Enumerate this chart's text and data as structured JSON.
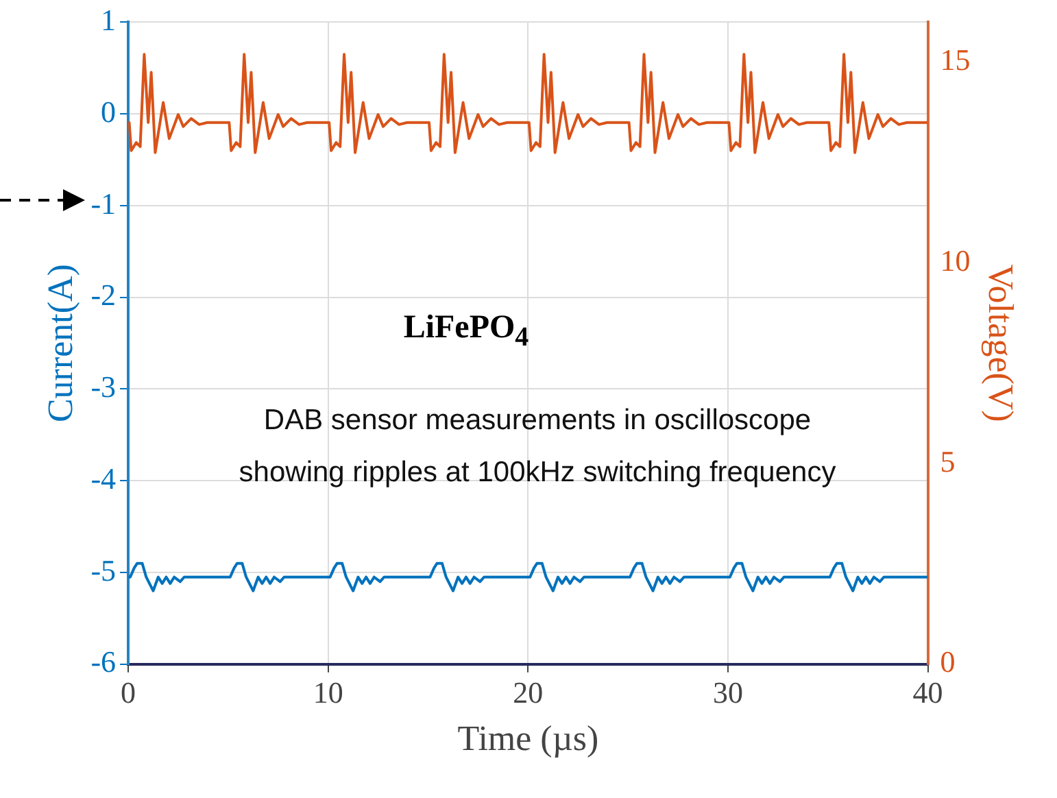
{
  "chart_data": {
    "type": "line",
    "xlabel": "Time (µs)",
    "ylabel": "Current(A)",
    "y2label": "Voltage(V)",
    "xlim": [
      0,
      40
    ],
    "xticks": [
      0,
      10,
      20,
      30,
      40
    ],
    "ylim": [
      -6,
      1
    ],
    "yticks": [
      -6,
      -5,
      -4,
      -3,
      -2,
      -1,
      0,
      1
    ],
    "y2lim": [
      0,
      16
    ],
    "y2ticks": [
      0,
      5,
      10,
      15
    ],
    "grid": true,
    "marker": "none",
    "line_style": "solid",
    "annotations": [
      "LiFePO$_{4}$",
      "DAB sensor measurements in oscilloscope showing ripples at 100kHz switching frequency"
    ],
    "series": [
      {
        "axis": "y2",
        "color": "#d95319",
        "x": [
          0,
          0.05,
          0.15,
          0.4,
          0.6,
          0.8,
          1.0,
          1.15,
          1.35,
          1.75,
          2.05,
          2.5,
          2.75,
          3.15,
          3.55,
          3.95,
          5.05,
          5.15,
          5.4,
          5.6,
          5.8,
          6.0,
          6.15,
          6.35,
          6.75,
          7.05,
          7.5,
          7.75,
          8.15,
          8.55,
          8.95,
          10.05,
          10.15,
          10.4,
          10.6,
          10.8,
          11.0,
          11.15,
          11.35,
          11.75,
          12.05,
          12.5,
          12.75,
          13.15,
          13.55,
          13.95,
          15.05,
          15.15,
          15.4,
          15.6,
          15.8,
          16.0,
          16.15,
          16.35,
          16.75,
          17.05,
          17.5,
          17.75,
          18.15,
          18.55,
          18.95,
          20.05,
          20.15,
          20.4,
          20.6,
          20.8,
          21.0,
          21.15,
          21.35,
          21.75,
          22.05,
          22.5,
          22.75,
          23.15,
          23.55,
          23.95,
          25.05,
          25.15,
          25.4,
          25.6,
          25.8,
          26.0,
          26.15,
          26.35,
          26.75,
          27.05,
          27.5,
          27.75,
          28.15,
          28.55,
          28.95,
          30.05,
          30.15,
          30.4,
          30.6,
          30.8,
          31.0,
          31.15,
          31.35,
          31.75,
          32.05,
          32.5,
          32.75,
          33.15,
          33.55,
          33.95,
          35.05,
          35.15,
          35.4,
          35.6,
          35.8,
          36.0,
          36.15,
          36.35,
          36.75,
          37.05,
          37.5,
          37.75,
          38.15,
          38.55,
          38.95,
          40
        ],
        "values": [
          13.5,
          13.5,
          12.8,
          13.0,
          12.9,
          15.2,
          13.5,
          14.75,
          12.75,
          14.0,
          13.1,
          13.7,
          13.4,
          13.6,
          13.45,
          13.5,
          13.5,
          12.8,
          13.0,
          12.9,
          15.2,
          13.5,
          14.75,
          12.75,
          14.0,
          13.1,
          13.7,
          13.4,
          13.6,
          13.45,
          13.5,
          13.5,
          12.8,
          13.0,
          12.9,
          15.2,
          13.5,
          14.75,
          12.75,
          14.0,
          13.1,
          13.7,
          13.4,
          13.6,
          13.45,
          13.5,
          13.5,
          12.8,
          13.0,
          12.9,
          15.2,
          13.5,
          14.75,
          12.75,
          14.0,
          13.1,
          13.7,
          13.4,
          13.6,
          13.45,
          13.5,
          13.5,
          12.8,
          13.0,
          12.9,
          15.2,
          13.5,
          14.75,
          12.75,
          14.0,
          13.1,
          13.7,
          13.4,
          13.6,
          13.45,
          13.5,
          13.5,
          12.8,
          13.0,
          12.9,
          15.2,
          13.5,
          14.75,
          12.75,
          14.0,
          13.1,
          13.7,
          13.4,
          13.6,
          13.45,
          13.5,
          13.5,
          12.8,
          13.0,
          12.9,
          15.2,
          13.5,
          14.75,
          12.75,
          14.0,
          13.1,
          13.7,
          13.4,
          13.6,
          13.45,
          13.5,
          13.5,
          12.8,
          13.0,
          12.9,
          15.2,
          13.5,
          14.75,
          12.75,
          14.0,
          13.1,
          13.7,
          13.4,
          13.6,
          13.45,
          13.5,
          13.5
        ]
      },
      {
        "axis": "y",
        "color": "#0072bd",
        "x": [
          0,
          0.1,
          0.3,
          0.45,
          0.7,
          0.9,
          1.25,
          1.5,
          1.7,
          1.9,
          2.1,
          2.3,
          2.6,
          2.8,
          5.1,
          5.3,
          5.45,
          5.7,
          5.9,
          6.25,
          6.5,
          6.7,
          6.9,
          7.1,
          7.3,
          7.6,
          7.8,
          10.1,
          10.3,
          10.45,
          10.7,
          10.9,
          11.25,
          11.5,
          11.7,
          11.9,
          12.1,
          12.3,
          12.6,
          12.8,
          15.1,
          15.3,
          15.45,
          15.7,
          15.9,
          16.25,
          16.5,
          16.7,
          16.9,
          17.1,
          17.3,
          17.6,
          17.8,
          20.1,
          20.3,
          20.45,
          20.7,
          20.9,
          21.25,
          21.5,
          21.7,
          21.9,
          22.1,
          22.3,
          22.6,
          22.8,
          25.1,
          25.3,
          25.45,
          25.7,
          25.9,
          26.25,
          26.5,
          26.7,
          26.9,
          27.1,
          27.3,
          27.6,
          27.8,
          30.1,
          30.3,
          30.45,
          30.7,
          30.9,
          31.25,
          31.5,
          31.7,
          31.9,
          32.1,
          32.3,
          32.6,
          32.8,
          35.1,
          35.3,
          35.45,
          35.7,
          35.9,
          36.25,
          36.5,
          36.7,
          36.9,
          37.1,
          37.3,
          37.6,
          37.8,
          40
        ],
        "values": [
          -5.05,
          -5.05,
          -4.95,
          -4.9,
          -4.9,
          -5.05,
          -5.2,
          -5.05,
          -5.12,
          -5.05,
          -5.12,
          -5.05,
          -5.1,
          -5.05,
          -5.05,
          -4.95,
          -4.9,
          -4.9,
          -5.05,
          -5.2,
          -5.05,
          -5.12,
          -5.05,
          -5.12,
          -5.05,
          -5.1,
          -5.05,
          -5.05,
          -4.95,
          -4.9,
          -4.9,
          -5.05,
          -5.2,
          -5.05,
          -5.12,
          -5.05,
          -5.12,
          -5.05,
          -5.1,
          -5.05,
          -5.05,
          -4.95,
          -4.9,
          -4.9,
          -5.05,
          -5.2,
          -5.05,
          -5.12,
          -5.05,
          -5.12,
          -5.05,
          -5.1,
          -5.05,
          -5.05,
          -4.95,
          -4.9,
          -4.9,
          -5.05,
          -5.2,
          -5.05,
          -5.12,
          -5.05,
          -5.12,
          -5.05,
          -5.1,
          -5.05,
          -5.05,
          -4.95,
          -4.9,
          -4.9,
          -5.05,
          -5.2,
          -5.05,
          -5.12,
          -5.05,
          -5.12,
          -5.05,
          -5.1,
          -5.05,
          -5.05,
          -4.95,
          -4.9,
          -4.9,
          -5.05,
          -5.2,
          -5.05,
          -5.12,
          -5.05,
          -5.12,
          -5.05,
          -5.1,
          -5.05,
          -5.05,
          -4.95,
          -4.9,
          -4.9,
          -5.05,
          -5.2,
          -5.05,
          -5.12,
          -5.05,
          -5.12,
          -5.05,
          -5.1,
          -5.05,
          -5.05
        ]
      }
    ]
  }
}
